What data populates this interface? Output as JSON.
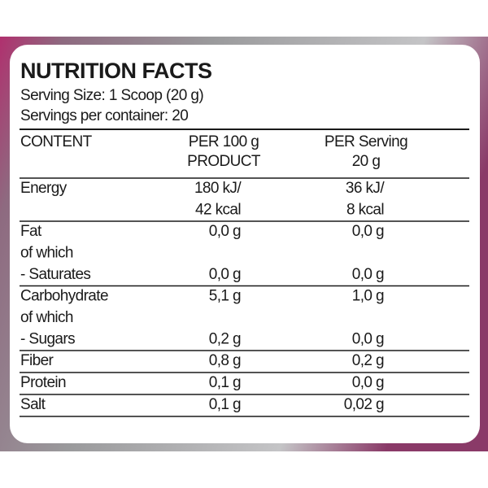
{
  "header": {
    "title": "NUTRITION FACTS",
    "serving_size": "Serving Size: 1 Scoop (20 g)",
    "servings": "Servings per container: 20"
  },
  "table": {
    "columns": [
      [
        "CONTENT"
      ],
      [
        "PER 100 g",
        "PRODUCT"
      ],
      [
        "PER Serving",
        "20 g"
      ]
    ],
    "groups": [
      [
        {
          "label": "Energy",
          "per_100g": "180 kJ/",
          "per_serving": "36 kJ/"
        },
        {
          "per_100g": "42 kcal",
          "per_serving": "8 kcal"
        }
      ],
      [
        {
          "label": "Fat",
          "per_100g": "0,0 g",
          "per_serving": "0,0 g"
        },
        {
          "label": "of which"
        },
        {
          "label": "- Saturates",
          "per_100g": "0,0 g",
          "per_serving": "0,0 g"
        }
      ],
      [
        {
          "label": "Carbohydrate",
          "per_100g": "5,1 g",
          "per_serving": "1,0 g"
        },
        {
          "label": "of which"
        },
        {
          "label": "- Sugars",
          "per_100g": "0,2 g",
          "per_serving": "0,0 g"
        }
      ],
      [
        {
          "label": "Fiber",
          "per_100g": "0,8 g",
          "per_serving": "0,2 g"
        }
      ],
      [
        {
          "label": "Protein",
          "per_100g": "0,1 g",
          "per_serving": "0,0 g"
        }
      ],
      [
        {
          "label": "Salt",
          "per_100g": "0,1 g",
          "per_serving": "0,02 g"
        }
      ]
    ]
  }
}
